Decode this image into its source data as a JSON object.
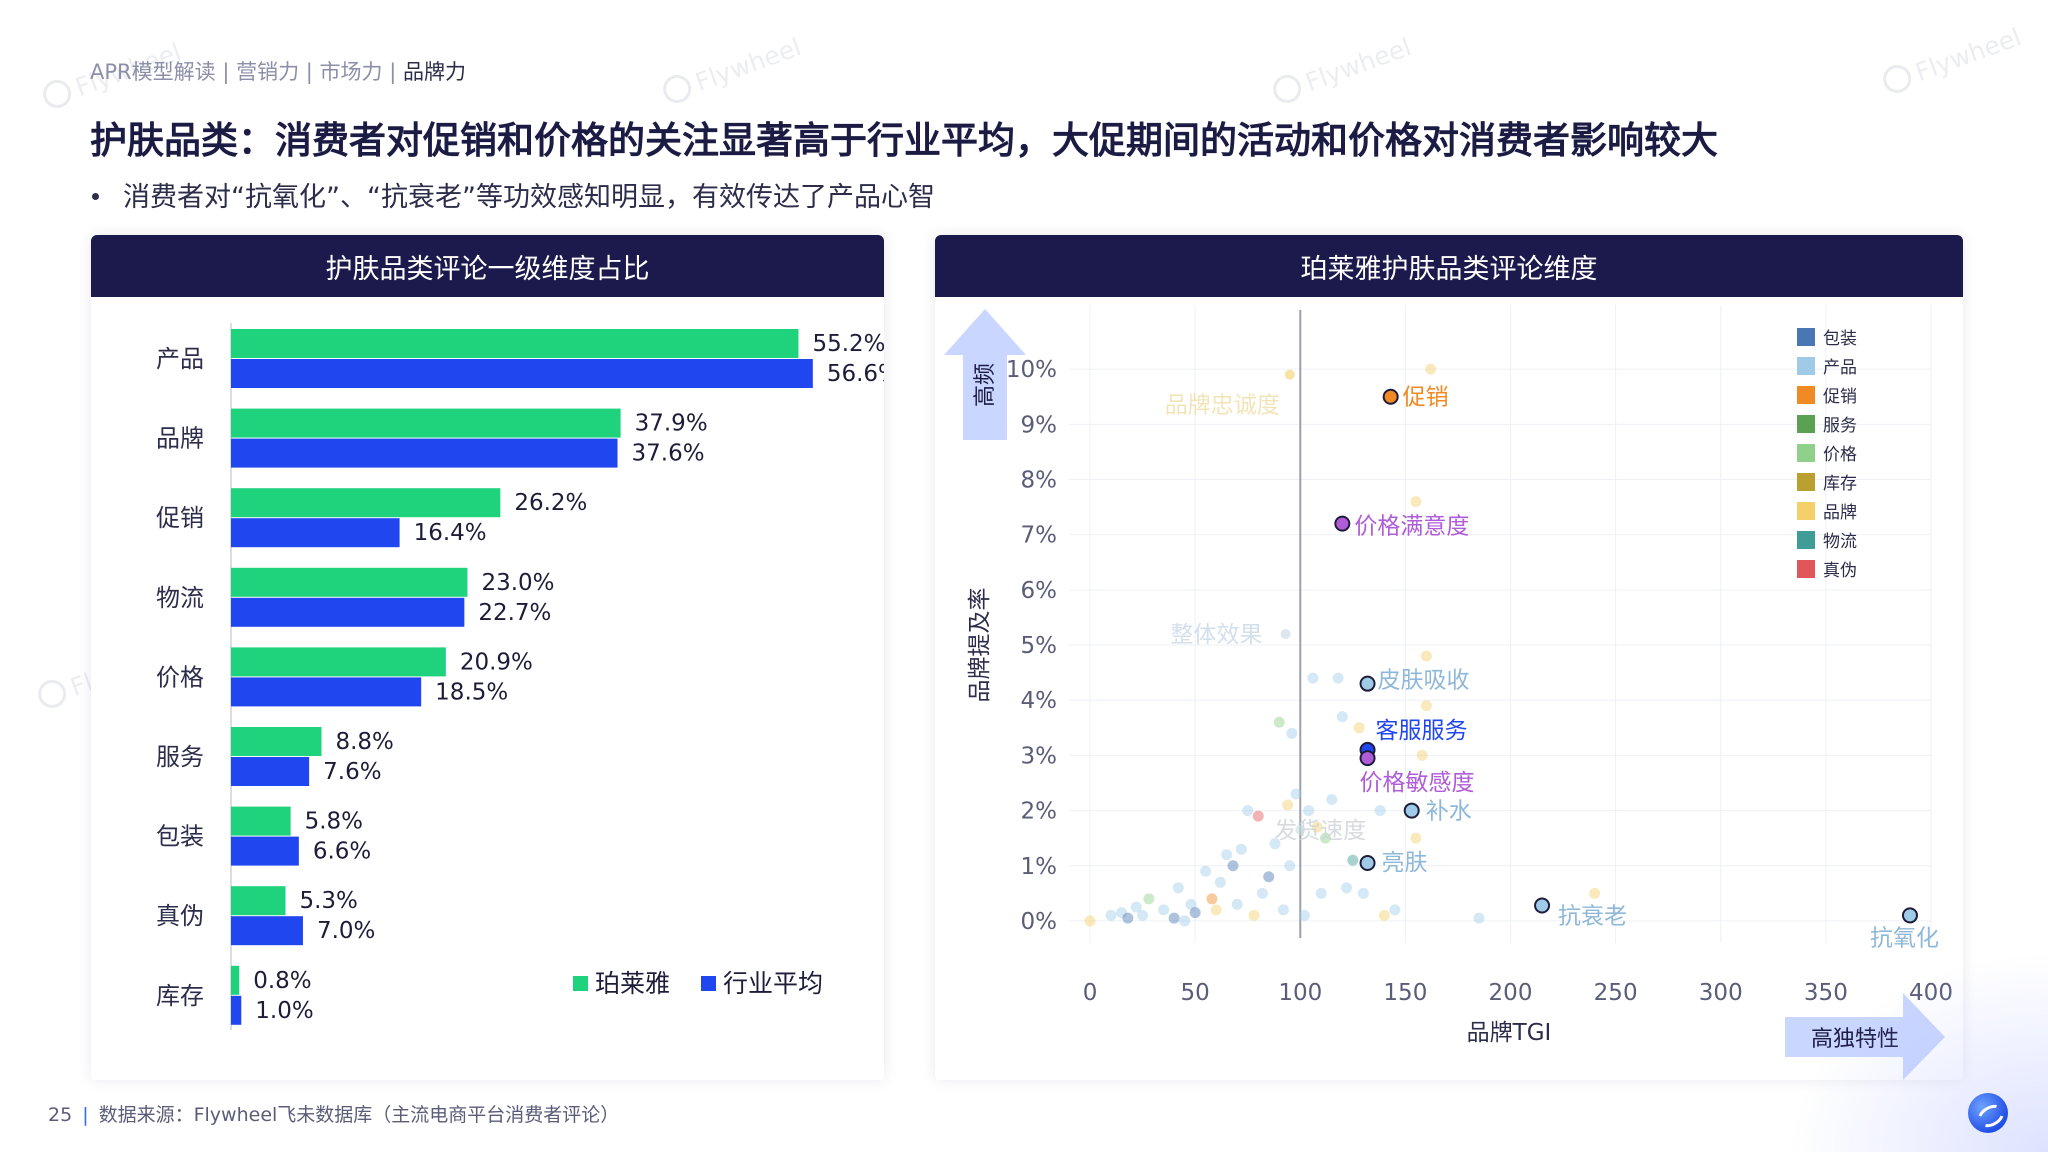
{
  "breadcrumb": {
    "items": [
      "APR模型解读",
      "营销力",
      "市场力"
    ],
    "current": "品牌力",
    "separator": "|"
  },
  "title": "护肤品类：消费者对促销和价格的关注显著高于行业平均，大促期间的活动和价格对消费者影响较大",
  "subtitle": "消费者对“抗氧化”、“抗衰老”等功效感知明显，有效传达了产品心智",
  "watermark_text": "Flywheel",
  "colors": {
    "header_bg": "#1c1a4d",
    "brand_green": "#1fd27c",
    "industry_blue": "#2046f0",
    "arrow_fill": "#c9d6ff"
  },
  "left_panel": {
    "header": "护肤品类评论一级维度占比"
  },
  "right_panel": {
    "header": "珀莱雅护肤品类评论维度"
  },
  "chart_data": [
    {
      "type": "bar",
      "orientation": "horizontal",
      "categories": [
        "产品",
        "品牌",
        "促销",
        "物流",
        "价格",
        "服务",
        "包装",
        "真伪",
        "库存"
      ],
      "series": [
        {
          "name": "珀莱雅",
          "color": "#1fd27c",
          "values": [
            55.2,
            37.9,
            26.2,
            23.0,
            20.9,
            8.8,
            5.8,
            5.3,
            0.8
          ]
        },
        {
          "name": "行业平均",
          "color": "#2046f0",
          "values": [
            56.6,
            37.6,
            16.4,
            22.7,
            18.5,
            7.6,
            6.6,
            7.0,
            1.0
          ]
        }
      ],
      "value_format": "%",
      "legend_position": "bottom-right"
    },
    {
      "type": "scatter",
      "xlabel": "品牌TGI",
      "ylabel": "品牌提及率",
      "xlim": [
        -10,
        400
      ],
      "ylim": [
        -0.4,
        10.8
      ],
      "x_ticks": [
        0,
        50,
        100,
        150,
        200,
        250,
        300,
        350,
        400
      ],
      "y_ticks": [
        "0%",
        "1%",
        "2%",
        "3%",
        "4%",
        "5%",
        "6%",
        "7%",
        "8%",
        "9%",
        "10%"
      ],
      "reference_line_x": 100,
      "grid": true,
      "up_arrow_label": "高频",
      "right_arrow_label": "高独特性",
      "legend_position": "top-right",
      "legend": [
        {
          "name": "包装",
          "color": "#4a77b4"
        },
        {
          "name": "产品",
          "color": "#9fcbe8"
        },
        {
          "name": "促销",
          "color": "#f08a24"
        },
        {
          "name": "服务",
          "color": "#5aa154"
        },
        {
          "name": "价格",
          "color": "#8fd18a"
        },
        {
          "name": "库存",
          "color": "#b9a031"
        },
        {
          "name": "品牌",
          "color": "#f5cf6a"
        },
        {
          "name": "物流",
          "color": "#3f9c96"
        },
        {
          "name": "真伪",
          "color": "#e15759"
        }
      ],
      "labeled_points": [
        {
          "label": "促销",
          "x": 143,
          "y": 9.5,
          "color": "#f08a24",
          "label_color": "#f08a24",
          "highlight": true
        },
        {
          "label": "价格满意度",
          "x": 120,
          "y": 7.2,
          "color": "#b05cd8",
          "label_color": "#b05cd8",
          "highlight": true
        },
        {
          "label": "皮肤吸收",
          "x": 132,
          "y": 4.3,
          "color": "#9fcbe8",
          "label_color": "#8fb8d8",
          "highlight": true
        },
        {
          "label": "客服服务",
          "x": 132,
          "y": 3.1,
          "color": "#2046f0",
          "label_color": "#2046f0",
          "highlight": true
        },
        {
          "label": "价格敏感度",
          "x": 132,
          "y": 2.95,
          "color": "#b05cd8",
          "label_color": "#b05cd8",
          "highlight": true
        },
        {
          "label": "补水",
          "x": 153,
          "y": 2.0,
          "color": "#9fcbe8",
          "label_color": "#8fb8d8",
          "highlight": true
        },
        {
          "label": "亮肤",
          "x": 132,
          "y": 1.05,
          "color": "#9fcbe8",
          "label_color": "#8fb8d8",
          "highlight": true
        },
        {
          "label": "抗衰老",
          "x": 215,
          "y": 0.28,
          "color": "#9fcbe8",
          "label_color": "#8fb8d8",
          "highlight": true
        },
        {
          "label": "抗氧化",
          "x": 390,
          "y": 0.1,
          "color": "#9fcbe8",
          "label_color": "#8fb8d8",
          "highlight": true
        },
        {
          "label": "品牌忠诚度",
          "x": 95,
          "y": 9.9,
          "color": "#f5cf6a",
          "label_color": "#f0dba0",
          "highlight": false
        },
        {
          "label": "整体效果",
          "x": 93,
          "y": 5.2,
          "color": "#c5d5e5",
          "label_color": "#c5d5e5",
          "highlight": false
        },
        {
          "label": "发货速度",
          "x": 100,
          "y": 1.65,
          "color": "#c8e0dc",
          "label_color": "#c9cfd6",
          "highlight": false
        }
      ],
      "background_points": [
        {
          "x": 0,
          "y": 0,
          "color": "#f5cf6a"
        },
        {
          "x": 10,
          "y": 0.1,
          "color": "#9fcbe8"
        },
        {
          "x": 15,
          "y": 0.15,
          "color": "#9fcbe8"
        },
        {
          "x": 18,
          "y": 0.05,
          "color": "#4a77b4"
        },
        {
          "x": 22,
          "y": 0.25,
          "color": "#9fcbe8"
        },
        {
          "x": 25,
          "y": 0.1,
          "color": "#9fcbe8"
        },
        {
          "x": 28,
          "y": 0.4,
          "color": "#8fd18a"
        },
        {
          "x": 35,
          "y": 0.2,
          "color": "#9fcbe8"
        },
        {
          "x": 40,
          "y": 0.05,
          "color": "#4a77b4"
        },
        {
          "x": 42,
          "y": 0.6,
          "color": "#9fcbe8"
        },
        {
          "x": 45,
          "y": 0.0,
          "color": "#9fcbe8"
        },
        {
          "x": 48,
          "y": 0.3,
          "color": "#9fcbe8"
        },
        {
          "x": 50,
          "y": 0.15,
          "color": "#4a77b4"
        },
        {
          "x": 55,
          "y": 0.9,
          "color": "#9fcbe8"
        },
        {
          "x": 58,
          "y": 0.4,
          "color": "#f08a24"
        },
        {
          "x": 60,
          "y": 0.2,
          "color": "#f5cf6a"
        },
        {
          "x": 62,
          "y": 0.7,
          "color": "#9fcbe8"
        },
        {
          "x": 65,
          "y": 1.2,
          "color": "#9fcbe8"
        },
        {
          "x": 68,
          "y": 1.0,
          "color": "#4a77b4"
        },
        {
          "x": 70,
          "y": 0.3,
          "color": "#9fcbe8"
        },
        {
          "x": 72,
          "y": 1.3,
          "color": "#9fcbe8"
        },
        {
          "x": 75,
          "y": 2.0,
          "color": "#9fcbe8"
        },
        {
          "x": 78,
          "y": 0.1,
          "color": "#f5cf6a"
        },
        {
          "x": 80,
          "y": 1.9,
          "color": "#e15759"
        },
        {
          "x": 82,
          "y": 0.5,
          "color": "#9fcbe8"
        },
        {
          "x": 85,
          "y": 0.8,
          "color": "#4a77b4"
        },
        {
          "x": 88,
          "y": 1.4,
          "color": "#9fcbe8"
        },
        {
          "x": 90,
          "y": 3.6,
          "color": "#8fd18a"
        },
        {
          "x": 92,
          "y": 0.2,
          "color": "#9fcbe8"
        },
        {
          "x": 94,
          "y": 2.1,
          "color": "#f5cf6a"
        },
        {
          "x": 95,
          "y": 1.0,
          "color": "#9fcbe8"
        },
        {
          "x": 96,
          "y": 3.4,
          "color": "#9fcbe8"
        },
        {
          "x": 98,
          "y": 2.3,
          "color": "#9fcbe8"
        },
        {
          "x": 102,
          "y": 0.1,
          "color": "#9fcbe8"
        },
        {
          "x": 104,
          "y": 2.0,
          "color": "#9fcbe8"
        },
        {
          "x": 106,
          "y": 4.4,
          "color": "#9fcbe8"
        },
        {
          "x": 108,
          "y": 1.7,
          "color": "#f5cf6a"
        },
        {
          "x": 110,
          "y": 0.5,
          "color": "#9fcbe8"
        },
        {
          "x": 112,
          "y": 1.5,
          "color": "#8fd18a"
        },
        {
          "x": 115,
          "y": 2.2,
          "color": "#9fcbe8"
        },
        {
          "x": 118,
          "y": 4.4,
          "color": "#9fcbe8"
        },
        {
          "x": 120,
          "y": 3.7,
          "color": "#9fcbe8"
        },
        {
          "x": 122,
          "y": 0.6,
          "color": "#9fcbe8"
        },
        {
          "x": 125,
          "y": 1.1,
          "color": "#3f9c96"
        },
        {
          "x": 128,
          "y": 3.5,
          "color": "#f5cf6a"
        },
        {
          "x": 130,
          "y": 0.5,
          "color": "#9fcbe8"
        },
        {
          "x": 138,
          "y": 2.0,
          "color": "#9fcbe8"
        },
        {
          "x": 140,
          "y": 0.1,
          "color": "#f5cf6a"
        },
        {
          "x": 145,
          "y": 0.2,
          "color": "#9fcbe8"
        },
        {
          "x": 155,
          "y": 1.5,
          "color": "#f5cf6a"
        },
        {
          "x": 158,
          "y": 3.0,
          "color": "#f5cf6a"
        },
        {
          "x": 160,
          "y": 3.9,
          "color": "#f5cf6a"
        },
        {
          "x": 160,
          "y": 4.8,
          "color": "#f5cf6a"
        },
        {
          "x": 155,
          "y": 7.6,
          "color": "#f5cf6a"
        },
        {
          "x": 162,
          "y": 10.0,
          "color": "#f5cf6a"
        },
        {
          "x": 185,
          "y": 0.05,
          "color": "#9fcbe8"
        },
        {
          "x": 240,
          "y": 0.5,
          "color": "#f5cf6a"
        }
      ]
    }
  ],
  "footer": {
    "page": "25",
    "source": "数据来源：Flywheel飞未数据库（主流电商平台消费者评论）"
  }
}
